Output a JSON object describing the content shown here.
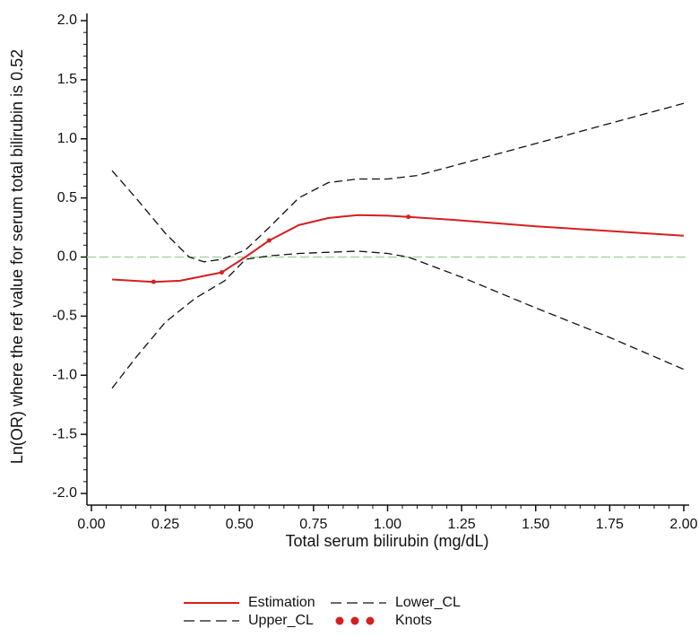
{
  "chart_data": {
    "type": "line",
    "x_label": "Total serum bilirubin (mg/dL)",
    "y_label": "Ln(OR) where the ref value for serum total bilirubin is 0.52",
    "xlim": [
      0,
      2
    ],
    "ylim": [
      -2,
      2
    ],
    "xticks": [
      {
        "value": 0,
        "label": "0.00"
      },
      0.25,
      {
        "value": 0.5,
        "label": "0.50"
      },
      0.75,
      {
        "value": 1,
        "label": "1.00"
      },
      1.25,
      {
        "value": 1.5,
        "label": "1.50"
      },
      1.75,
      {
        "value": 2,
        "label": "2.00"
      }
    ],
    "yticks": [
      {
        "value": -2,
        "label": "-2.0"
      },
      -1.5,
      {
        "value": -1,
        "label": "-1.0"
      },
      -0.5,
      {
        "value": 0,
        "label": "0.0"
      },
      0.5,
      {
        "value": 1,
        "label": "1.0"
      },
      1.5,
      {
        "value": 2,
        "label": "2.0"
      }
    ],
    "reference_line": {
      "value": 0,
      "color": "#a8d4a8"
    },
    "series": [
      {
        "name": "Estimation",
        "color": "#d61f1f",
        "style": "solid",
        "x": [
          0.07,
          0.21,
          0.3,
          0.44,
          0.52,
          0.6,
          0.7,
          0.8,
          0.9,
          1.0,
          1.07,
          1.25,
          1.5,
          1.75,
          2.0
        ],
        "values": [
          -0.19,
          -0.21,
          -0.2,
          -0.13,
          0,
          0.14,
          0.27,
          0.33,
          0.355,
          0.35,
          0.34,
          0.31,
          0.26,
          0.22,
          0.18
        ]
      },
      {
        "name": "Lower_CL",
        "color": "#111111",
        "style": "dashed",
        "x": [
          0.07,
          0.15,
          0.25,
          0.35,
          0.45,
          0.52,
          0.6,
          0.7,
          0.8,
          0.9,
          1.0,
          1.07,
          1.25,
          1.5,
          1.75,
          2.0
        ],
        "values": [
          -1.11,
          -0.85,
          -0.55,
          -0.35,
          -0.2,
          -0.02,
          0.01,
          0.03,
          0.04,
          0.05,
          0.03,
          0,
          -0.17,
          -0.43,
          -0.68,
          -0.95
        ]
      },
      {
        "name": "Upper_CL",
        "color": "#111111",
        "style": "dashed",
        "x": [
          0.07,
          0.15,
          0.25,
          0.33,
          0.38,
          0.44,
          0.52,
          0.6,
          0.7,
          0.8,
          0.9,
          1.0,
          1.1,
          1.25,
          1.5,
          1.75,
          2.0
        ],
        "values": [
          0.73,
          0.5,
          0.2,
          0.0,
          -0.04,
          -0.02,
          0.06,
          0.25,
          0.5,
          0.63,
          0.66,
          0.66,
          0.69,
          0.79,
          0.96,
          1.13,
          1.3
        ]
      },
      {
        "name": "Knots",
        "color": "#d61f1f",
        "style": "points",
        "x": [
          0.21,
          0.44,
          0.6,
          1.07
        ],
        "values": [
          -0.21,
          -0.13,
          0.14,
          0.34
        ]
      }
    ]
  }
}
